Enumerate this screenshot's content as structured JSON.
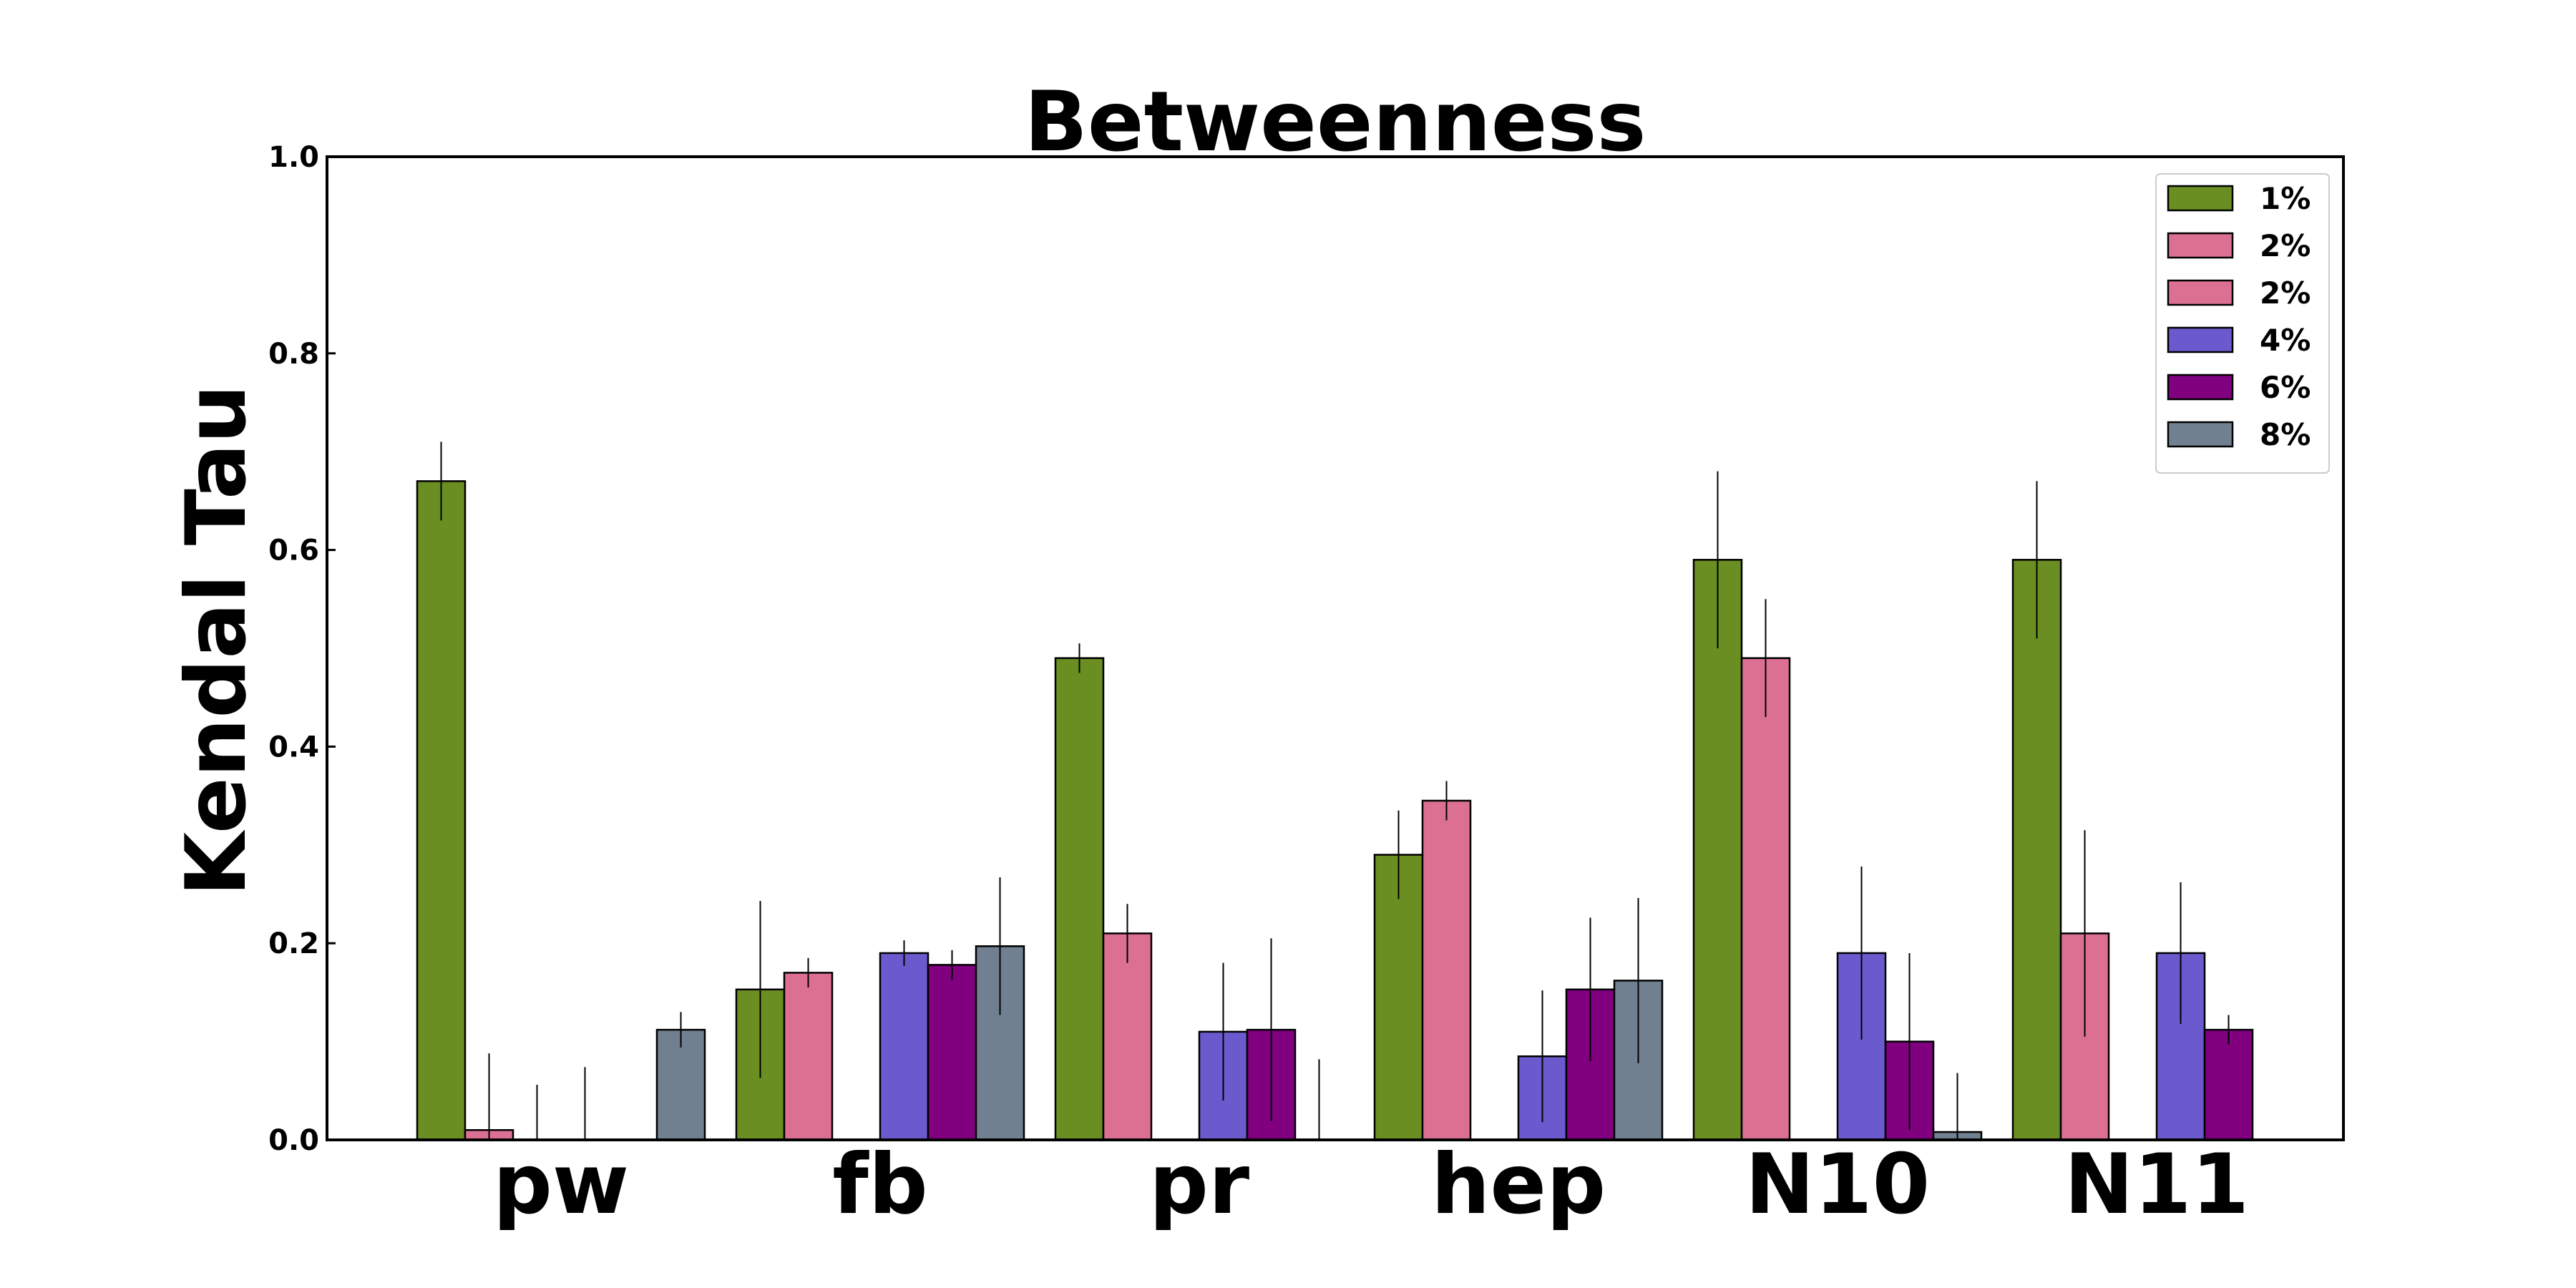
{
  "chart_data": {
    "type": "bar",
    "title": "Betweenness",
    "ylabel": "Kendal Tau",
    "xlabel": "",
    "ylim": [
      0,
      1.0
    ],
    "yticks": [
      "0.0",
      "0.2",
      "0.4",
      "0.6",
      "0.8",
      "1.0"
    ],
    "categories": [
      "pw",
      "fb",
      "pr",
      "hep",
      "N10",
      "N11"
    ],
    "legend_position": "top-right",
    "grid": false,
    "series": [
      {
        "name": "1%",
        "color": "#6b8e23",
        "values": [
          0.67,
          0.153,
          0.49,
          0.29,
          0.59,
          0.59
        ],
        "errors": [
          0.04,
          0.09,
          0.015,
          0.045,
          0.09,
          0.08
        ]
      },
      {
        "name": "2%",
        "color": "#db7093",
        "values": [
          0.01,
          0.17,
          0.21,
          0.345,
          0.49,
          0.21
        ],
        "errors": [
          0.078,
          0.015,
          0.03,
          0.02,
          0.06,
          0.105
        ]
      },
      {
        "name": "2%",
        "color": "#db7093",
        "values": [
          0.0,
          0.0,
          0.0,
          0.0,
          0.0,
          0.0
        ],
        "errors": [
          0.056,
          0.0,
          0.0,
          0.0,
          0.0,
          0.0
        ]
      },
      {
        "name": "4%",
        "color": "#6a5acd",
        "values": [
          0.0,
          0.19,
          0.11,
          0.085,
          0.19,
          0.19
        ],
        "errors": [
          0.074,
          0.013,
          0.07,
          0.067,
          0.088,
          0.072
        ]
      },
      {
        "name": "6%",
        "color": "#800080",
        "values": [
          0.0,
          0.178,
          0.112,
          0.153,
          0.1,
          0.112
        ],
        "errors": [
          0.0,
          0.015,
          0.093,
          0.073,
          0.09,
          0.015
        ]
      },
      {
        "name": "8%",
        "color": "#708090",
        "values": [
          0.112,
          0.197,
          0.0,
          0.162,
          0.008,
          0.0
        ],
        "errors": [
          0.018,
          0.07,
          0.082,
          0.084,
          0.06,
          0.0
        ]
      }
    ]
  }
}
